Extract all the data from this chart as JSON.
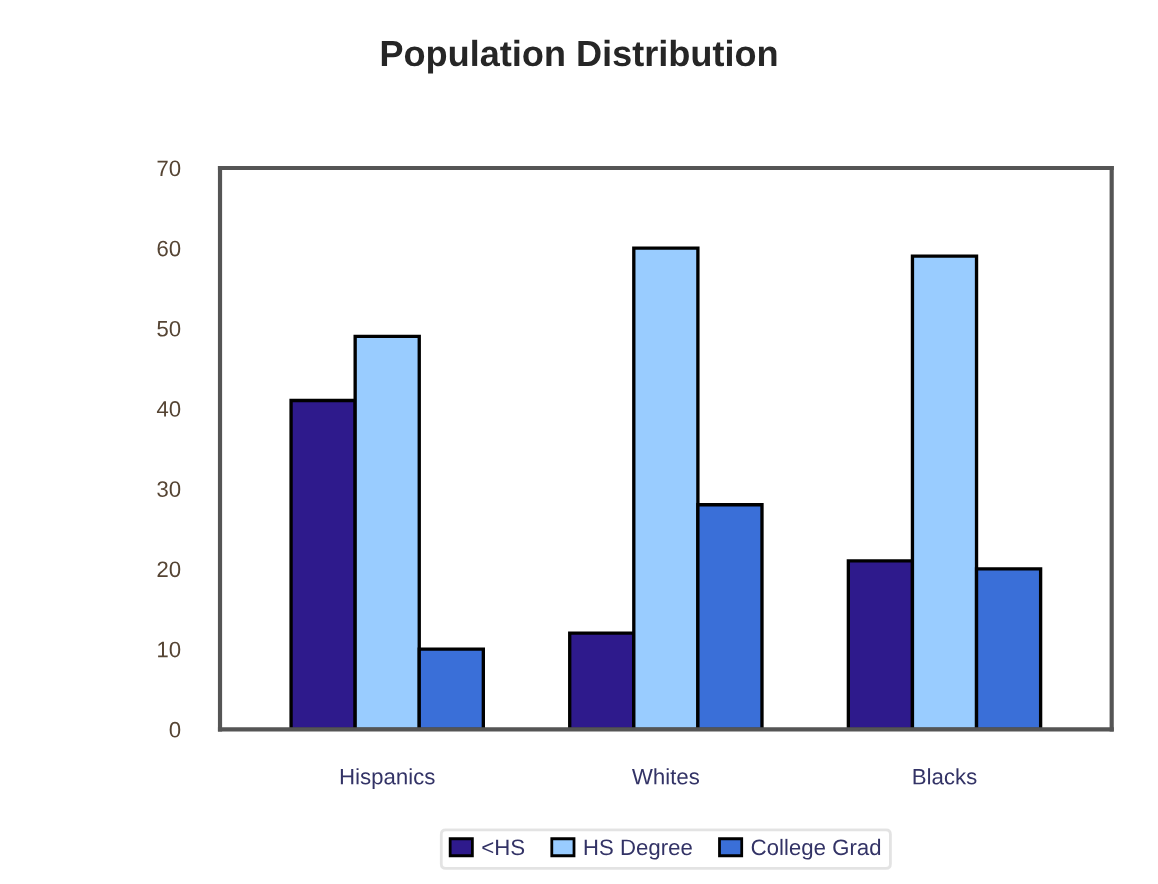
{
  "chart_data": {
    "type": "bar",
    "title": "Population Distribution",
    "categories": [
      "Hispanics",
      "Whites",
      "Blacks"
    ],
    "series": [
      {
        "name": "<HS",
        "color": "#2e1a8c",
        "values": [
          41,
          12,
          21
        ]
      },
      {
        "name": "HS Degree",
        "color": "#99ccff",
        "values": [
          49,
          60,
          59
        ]
      },
      {
        "name": "College Grad",
        "color": "#3a6fd8",
        "values": [
          10,
          28,
          20
        ]
      }
    ],
    "ylim": [
      0,
      70
    ],
    "yticks": [
      0,
      10,
      20,
      30,
      40,
      50,
      60,
      70
    ],
    "grid": false,
    "legend": "bottom"
  }
}
